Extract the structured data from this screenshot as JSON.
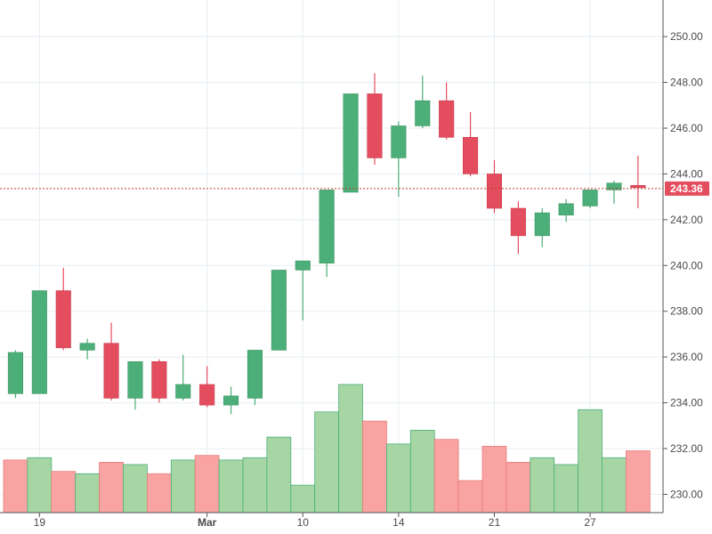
{
  "chart_data": {
    "type": "candlestick",
    "title": "",
    "xlabel": "",
    "ylabel": "",
    "ylim": [
      229.2,
      251.6
    ],
    "grid": true,
    "y_ticks": [
      "230.00",
      "232.00",
      "234.00",
      "236.00",
      "238.00",
      "240.00",
      "242.00",
      "244.00",
      "246.00",
      "248.00",
      "250.00"
    ],
    "x_ticks": [
      {
        "label": "19",
        "index": 1,
        "bold": false
      },
      {
        "label": "Mar",
        "index": 8,
        "bold": true
      },
      {
        "label": "10",
        "index": 12,
        "bold": false
      },
      {
        "label": "14",
        "index": 16,
        "bold": false
      },
      {
        "label": "21",
        "index": 20,
        "bold": false
      },
      {
        "label": "27",
        "index": 24,
        "bold": false
      }
    ],
    "current_price": "243.36",
    "colors": {
      "up": "#4cae78",
      "down": "#e44d5e",
      "volume_up": "#a6d6a4",
      "volume_down": "#f9a4a3",
      "grid": "#e6eef2",
      "price_line": "#c0392b"
    },
    "candles": [
      {
        "o": 234.4,
        "h": 236.3,
        "l": 234.2,
        "c": 236.2
      },
      {
        "o": 234.4,
        "h": 238.9,
        "l": 234.4,
        "c": 238.9
      },
      {
        "o": 238.9,
        "h": 239.9,
        "l": 236.3,
        "c": 236.4
      },
      {
        "o": 236.3,
        "h": 236.8,
        "l": 235.9,
        "c": 236.6
      },
      {
        "o": 236.6,
        "h": 237.5,
        "l": 234.1,
        "c": 234.2
      },
      {
        "o": 234.2,
        "h": 235.8,
        "l": 233.7,
        "c": 235.8
      },
      {
        "o": 235.8,
        "h": 235.9,
        "l": 234.0,
        "c": 234.2
      },
      {
        "o": 234.2,
        "h": 236.1,
        "l": 234.1,
        "c": 234.8
      },
      {
        "o": 234.8,
        "h": 235.6,
        "l": 233.8,
        "c": 233.9
      },
      {
        "o": 233.9,
        "h": 234.7,
        "l": 233.5,
        "c": 234.3
      },
      {
        "o": 234.2,
        "h": 236.3,
        "l": 233.9,
        "c": 236.3
      },
      {
        "o": 236.3,
        "h": 239.8,
        "l": 236.3,
        "c": 239.8
      },
      {
        "o": 239.8,
        "h": 240.2,
        "l": 237.6,
        "c": 240.2
      },
      {
        "o": 240.1,
        "h": 243.3,
        "l": 239.5,
        "c": 243.3
      },
      {
        "o": 243.2,
        "h": 247.5,
        "l": 243.2,
        "c": 247.5
      },
      {
        "o": 247.5,
        "h": 248.4,
        "l": 244.4,
        "c": 244.7
      },
      {
        "o": 244.7,
        "h": 246.3,
        "l": 243.0,
        "c": 246.1
      },
      {
        "o": 246.1,
        "h": 248.3,
        "l": 246.0,
        "c": 247.2
      },
      {
        "o": 247.2,
        "h": 248.0,
        "l": 245.5,
        "c": 245.6
      },
      {
        "o": 245.6,
        "h": 246.7,
        "l": 243.9,
        "c": 244.0
      },
      {
        "o": 244.0,
        "h": 244.6,
        "l": 242.3,
        "c": 242.5
      },
      {
        "o": 242.5,
        "h": 242.8,
        "l": 240.5,
        "c": 241.3
      },
      {
        "o": 241.3,
        "h": 242.5,
        "l": 240.8,
        "c": 242.3
      },
      {
        "o": 242.2,
        "h": 242.9,
        "l": 241.9,
        "c": 242.7
      },
      {
        "o": 242.6,
        "h": 243.3,
        "l": 242.5,
        "c": 243.3
      },
      {
        "o": 243.3,
        "h": 243.7,
        "l": 242.7,
        "c": 243.6
      },
      {
        "o": 243.5,
        "h": 244.8,
        "l": 242.5,
        "c": 243.4
      }
    ],
    "volume": [
      {
        "value": 231.5,
        "dir": "down"
      },
      {
        "value": 231.6,
        "dir": "up"
      },
      {
        "value": 231.0,
        "dir": "down"
      },
      {
        "value": 230.9,
        "dir": "up"
      },
      {
        "value": 231.4,
        "dir": "down"
      },
      {
        "value": 231.3,
        "dir": "up"
      },
      {
        "value": 230.9,
        "dir": "down"
      },
      {
        "value": 231.5,
        "dir": "up"
      },
      {
        "value": 231.7,
        "dir": "down"
      },
      {
        "value": 231.5,
        "dir": "up"
      },
      {
        "value": 231.6,
        "dir": "up"
      },
      {
        "value": 232.5,
        "dir": "up"
      },
      {
        "value": 230.4,
        "dir": "up"
      },
      {
        "value": 233.6,
        "dir": "up"
      },
      {
        "value": 234.8,
        "dir": "up"
      },
      {
        "value": 233.2,
        "dir": "down"
      },
      {
        "value": 232.2,
        "dir": "up"
      },
      {
        "value": 232.8,
        "dir": "up"
      },
      {
        "value": 232.4,
        "dir": "down"
      },
      {
        "value": 230.6,
        "dir": "down"
      },
      {
        "value": 232.1,
        "dir": "down"
      },
      {
        "value": 231.4,
        "dir": "down"
      },
      {
        "value": 231.6,
        "dir": "up"
      },
      {
        "value": 231.3,
        "dir": "up"
      },
      {
        "value": 233.7,
        "dir": "up"
      },
      {
        "value": 231.6,
        "dir": "up"
      },
      {
        "value": 231.9,
        "dir": "down"
      }
    ]
  }
}
